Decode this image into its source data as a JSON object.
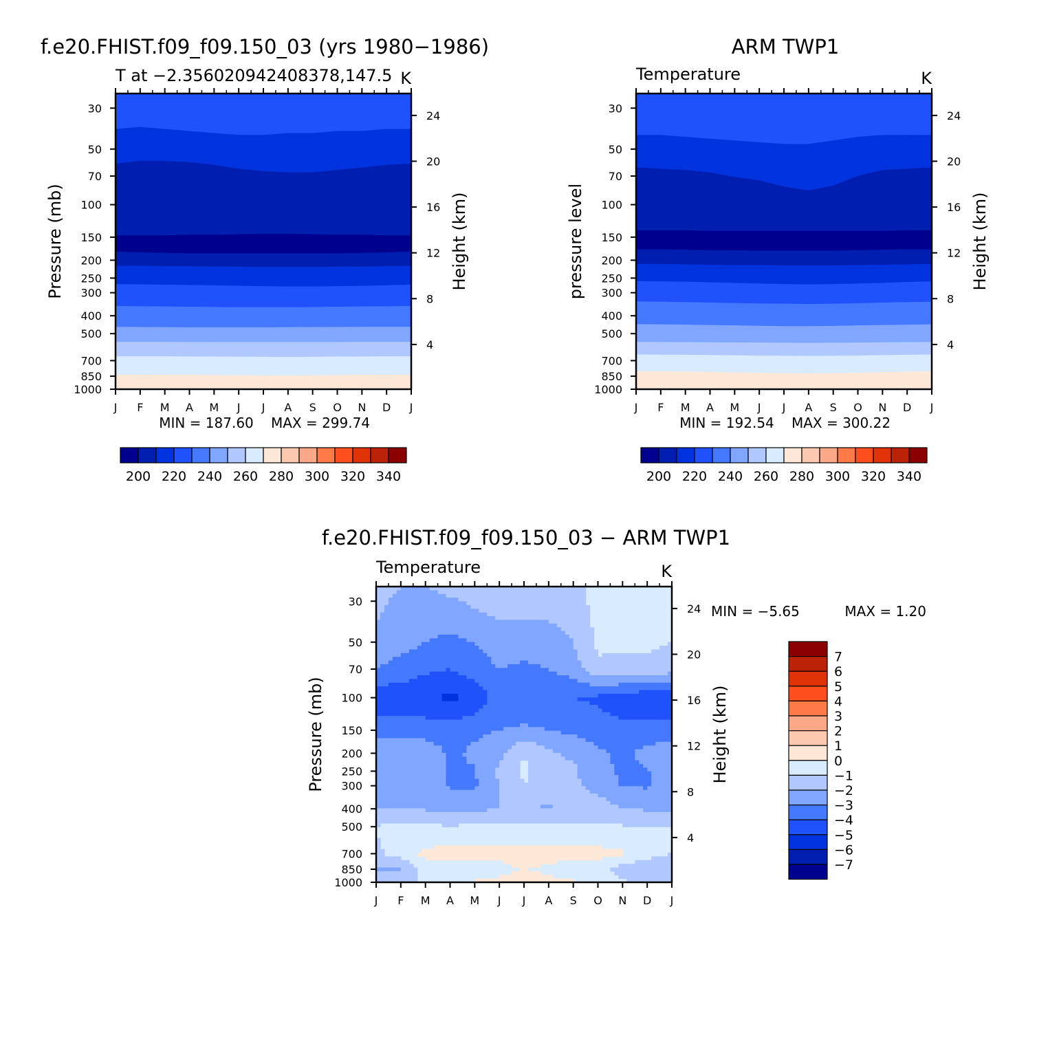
{
  "chart_data": [
    {
      "type": "contour",
      "id": "model",
      "title": "f.e20.FHIST.f09_f09.150_03 (yrs 1980-1986)",
      "subtitle": "T at -2.356020942408378,147.5",
      "units": "K",
      "ylabel": "Pressure (mb)",
      "ylabel_right": "Height (km)",
      "x_ticks": [
        "J",
        "F",
        "M",
        "A",
        "M",
        "J",
        "J",
        "A",
        "S",
        "O",
        "N",
        "D",
        "J"
      ],
      "y_ticks": [
        30,
        50,
        70,
        100,
        150,
        200,
        250,
        300,
        400,
        500,
        700,
        850,
        1000
      ],
      "height_ticks": [
        4,
        8,
        12,
        16,
        20,
        24
      ],
      "min_label": "MIN = 187.60",
      "max_label": "MAX = 299.74",
      "colorbar_labels": [
        "200",
        "220",
        "240",
        "260",
        "280",
        "300",
        "320",
        "340"
      ],
      "boundaries_mb": [
        {
          "level": 210,
          "p": [
            39,
            38,
            39,
            40,
            41,
            42,
            42,
            41,
            41,
            40,
            40,
            39,
            39
          ]
        },
        {
          "level": 200,
          "p": [
            60,
            58,
            58,
            59,
            61,
            64,
            66,
            67,
            67,
            65,
            63,
            61,
            60
          ]
        },
        {
          "level": 190,
          "p": [
            147,
            147,
            147,
            146,
            146,
            145,
            144,
            144,
            145,
            146,
            146,
            147,
            147
          ]
        },
        {
          "level": 200,
          "p": [
            180,
            182,
            183,
            184,
            184,
            184,
            184,
            184,
            184,
            184,
            183,
            182,
            180
          ]
        },
        {
          "level": 210,
          "p": [
            215,
            215,
            216,
            216,
            217,
            217,
            218,
            218,
            218,
            217,
            217,
            216,
            215
          ]
        },
        {
          "level": 220,
          "p": [
            270,
            271,
            272,
            273,
            274,
            276,
            277,
            278,
            278,
            277,
            276,
            274,
            272
          ]
        },
        {
          "level": 230,
          "p": [
            355,
            356,
            357,
            358,
            359,
            360,
            360,
            360,
            359,
            358,
            357,
            356,
            355
          ]
        },
        {
          "level": 240,
          "p": [
            460,
            461,
            462,
            463,
            463,
            463,
            463,
            462,
            461,
            461,
            460,
            460,
            460
          ]
        },
        {
          "level": 250,
          "p": [
            555,
            555,
            555,
            556,
            556,
            556,
            556,
            556,
            556,
            556,
            555,
            555,
            555
          ]
        },
        {
          "level": 260,
          "p": [
            665,
            665,
            665,
            666,
            667,
            668,
            669,
            670,
            669,
            667,
            666,
            665,
            665
          ]
        },
        {
          "level": 270,
          "p": [
            835,
            837,
            838,
            838,
            839,
            841,
            843,
            845,
            842,
            839,
            838,
            837,
            835
          ]
        }
      ]
    },
    {
      "type": "contour",
      "id": "obs",
      "title": "ARM TWP1",
      "subtitle": "Temperature",
      "units": "K",
      "ylabel": "pressure level",
      "ylabel_right": "Height (km)",
      "x_ticks": [
        "J",
        "F",
        "M",
        "A",
        "M",
        "J",
        "J",
        "A",
        "S",
        "O",
        "N",
        "D",
        "J"
      ],
      "y_ticks": [
        30,
        50,
        70,
        100,
        150,
        200,
        250,
        300,
        400,
        500,
        700,
        850,
        1000
      ],
      "height_ticks": [
        4,
        8,
        12,
        16,
        20,
        24
      ],
      "min_label": "MIN = 192.54",
      "max_label": "MAX = 300.22",
      "colorbar_labels": [
        "200",
        "220",
        "240",
        "260",
        "280",
        "300",
        "320",
        "340"
      ],
      "boundaries_mb": [
        {
          "level": 210,
          "p": [
            42,
            42,
            43,
            44,
            45,
            46,
            47,
            47,
            45,
            43,
            42,
            42,
            42
          ]
        },
        {
          "level": 200,
          "p": [
            63,
            64,
            65,
            67,
            71,
            74,
            80,
            84,
            79,
            70,
            65,
            64,
            63
          ]
        },
        {
          "level": 190,
          "p": [
            138,
            138,
            138,
            139,
            139,
            139,
            139,
            139,
            139,
            139,
            139,
            138,
            138
          ]
        },
        {
          "level": 200,
          "p": [
            175,
            175,
            176,
            177,
            177,
            178,
            178,
            178,
            178,
            177,
            176,
            175,
            175
          ]
        },
        {
          "level": 210,
          "p": [
            210,
            210,
            211,
            212,
            213,
            213,
            214,
            214,
            214,
            213,
            212,
            211,
            210
          ]
        },
        {
          "level": 220,
          "p": [
            260,
            261,
            262,
            264,
            266,
            268,
            270,
            271,
            270,
            268,
            266,
            263,
            261
          ]
        },
        {
          "level": 230,
          "p": [
            335,
            336,
            338,
            340,
            342,
            344,
            345,
            346,
            345,
            343,
            340,
            338,
            336
          ]
        },
        {
          "level": 240,
          "p": [
            445,
            446,
            448,
            450,
            452,
            454,
            456,
            456,
            455,
            452,
            450,
            448,
            446
          ]
        },
        {
          "level": 250,
          "p": [
            555,
            556,
            557,
            558,
            559,
            560,
            561,
            562,
            561,
            560,
            558,
            557,
            556
          ]
        },
        {
          "level": 260,
          "p": [
            650,
            651,
            652,
            654,
            656,
            658,
            660,
            661,
            660,
            658,
            655,
            652,
            650
          ]
        },
        {
          "level": 270,
          "p": [
            800,
            802,
            805,
            808,
            812,
            816,
            820,
            822,
            820,
            815,
            810,
            805,
            800
          ]
        }
      ]
    },
    {
      "type": "contour",
      "id": "diff",
      "title": "f.e20.FHIST.f09_f09.150_03 - ARM TWP1",
      "subtitle": "Temperature",
      "units": "K",
      "ylabel": "Pressure (mb)",
      "ylabel_right": "Height (km)",
      "x_ticks": [
        "J",
        "F",
        "M",
        "A",
        "M",
        "J",
        "J",
        "A",
        "S",
        "O",
        "N",
        "D",
        "J"
      ],
      "y_ticks": [
        30,
        50,
        70,
        100,
        150,
        200,
        250,
        300,
        400,
        500,
        700,
        850,
        1000
      ],
      "height_ticks": [
        4,
        8,
        12,
        16,
        20,
        24
      ],
      "min_label": "MIN = -5.65",
      "max_label": "MAX = 1.20",
      "colorbar_labels": [
        "7",
        "6",
        "5",
        "4",
        "3",
        "2",
        "1",
        "0",
        "-1",
        "-2",
        "-3",
        "-4",
        "-5",
        "-6",
        "-7"
      ],
      "field_levels": [
        25,
        30,
        50,
        70,
        100,
        150,
        200,
        250,
        300,
        400,
        500,
        700,
        850,
        1000
      ],
      "field": [
        [
          -1.5,
          -2.0,
          -2.0,
          -1.5,
          -1.5,
          -1.5,
          -1.5,
          -1.5,
          -1.5,
          -0.5,
          -0.5,
          -0.8,
          -0.8
        ],
        [
          -1.8,
          -2.2,
          -2.5,
          -2.2,
          -1.8,
          -1.5,
          -1.5,
          -1.5,
          -1.5,
          -0.6,
          -0.8,
          -0.8,
          -0.8
        ],
        [
          -2.2,
          -2.5,
          -3.0,
          -3.2,
          -3.0,
          -2.5,
          -2.5,
          -2.5,
          -2.0,
          -0.8,
          -0.8,
          -0.8,
          -1.0
        ],
        [
          -3.0,
          -3.5,
          -3.8,
          -4.0,
          -3.5,
          -3.0,
          -3.2,
          -3.0,
          -2.5,
          -1.2,
          -1.3,
          -1.3,
          -1.5
        ],
        [
          -4.8,
          -4.5,
          -4.8,
          -5.2,
          -4.8,
          -3.5,
          -4.0,
          -4.0,
          -4.0,
          -4.2,
          -4.5,
          -4.8,
          -5.0
        ],
        [
          -3.5,
          -3.5,
          -3.5,
          -3.5,
          -3.2,
          -3.0,
          -2.8,
          -3.0,
          -3.2,
          -3.5,
          -3.8,
          -3.6,
          -3.4
        ],
        [
          -2.3,
          -2.3,
          -2.3,
          -3.2,
          -2.8,
          -2.3,
          -1.0,
          -1.8,
          -2.2,
          -2.8,
          -3.2,
          -2.7,
          -2.5
        ],
        [
          -2.2,
          -3.1,
          -2.4,
          -3.1,
          -3.1,
          -1.8,
          -0.8,
          -1.7,
          -1.8,
          -2.8,
          -3.1,
          -3.1,
          -2.2
        ],
        [
          -2.1,
          -2.3,
          -2.1,
          -3.1,
          -3.1,
          -2.0,
          -1.0,
          -1.6,
          -1.8,
          -2.3,
          -3.1,
          -3.1,
          -2.1
        ],
        [
          -2.1,
          -2.0,
          -2.1,
          -2.2,
          -2.2,
          -2.0,
          -2.0,
          -2.1,
          -1.5,
          -1.5,
          -2.0,
          -2.1,
          -2.1
        ],
        [
          -0.9,
          -0.8,
          -0.8,
          -0.9,
          -0.8,
          -0.7,
          -0.8,
          -0.7,
          -0.8,
          -0.8,
          -0.9,
          -0.9,
          -0.9
        ],
        [
          -1.2,
          -0.5,
          0.25,
          0.3,
          0.3,
          0.3,
          0.35,
          0.35,
          0.3,
          0.3,
          0.1,
          -0.5,
          -1.0
        ],
        [
          -2.0,
          -2.1,
          -0.5,
          -0.5,
          -0.6,
          -0.3,
          0.05,
          -0.2,
          -0.5,
          -0.5,
          -1.5,
          -2.0,
          -2.0
        ],
        [
          -1.5,
          -1.3,
          -0.8,
          -0.3,
          0.1,
          0.2,
          0.3,
          0.2,
          0.1,
          -0.3,
          -0.8,
          -1.3,
          -1.5
        ]
      ]
    }
  ],
  "colors": {
    "colormap": [
      "#00008f",
      "#001fb0",
      "#0033dd",
      "#1f52fa",
      "#4479ff",
      "#80a6ff",
      "#b0c8ff",
      "#d8ebff",
      "#fde8d8",
      "#fcc9b0",
      "#fba888",
      "#ff7a47",
      "#ff4f1f",
      "#e03308",
      "#bb2208",
      "#8b0000"
    ],
    "text": "#000000",
    "frame": "#000000"
  }
}
